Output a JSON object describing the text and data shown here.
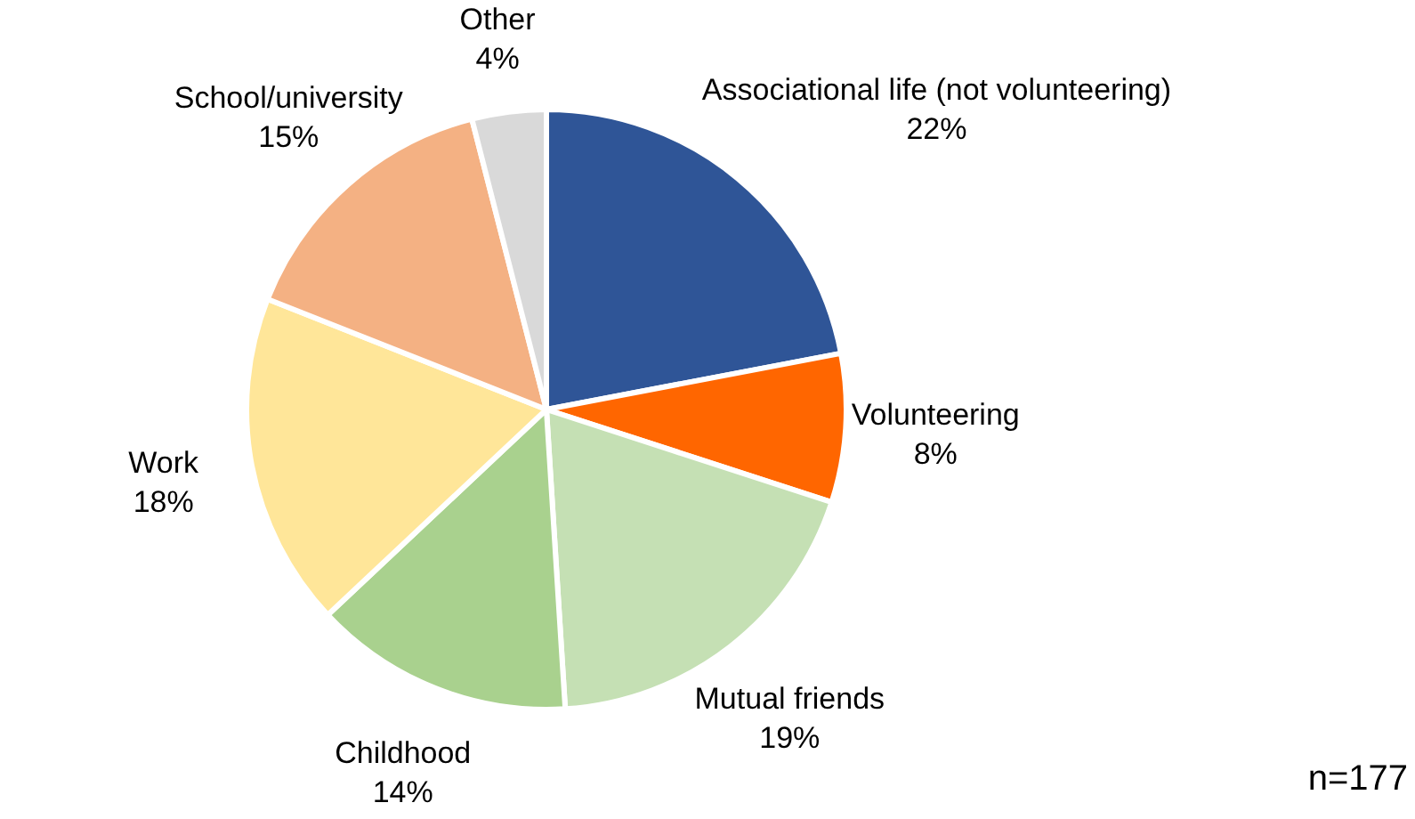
{
  "chart_data": {
    "type": "pie",
    "categories": [
      "Associational life (not volunteering)",
      "Volunteering",
      "Mutual friends",
      "Childhood",
      "Work",
      "School/university",
      "Other"
    ],
    "values": [
      22,
      8,
      19,
      14,
      18,
      15,
      4
    ],
    "colors": [
      "#2f5597",
      "#ff6600",
      "#c5e0b4",
      "#a9d18e",
      "#ffe699",
      "#f4b183",
      "#d9d9d9"
    ],
    "value_labels": [
      "22%",
      "8%",
      "19%",
      "14%",
      "18%",
      "15%",
      "4%"
    ],
    "annotations": [
      "n=177"
    ],
    "legend": false
  }
}
